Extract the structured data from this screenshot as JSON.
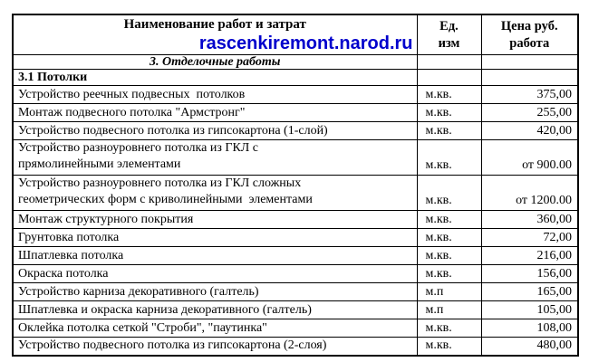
{
  "table": {
    "header": {
      "works_title": "Наименование работ и затрат",
      "site_link": "rascenkiremont.narod.ru",
      "unit_line1": "Ед.",
      "unit_line2": "изм",
      "price_line1": "Цена руб.",
      "price_line2": "работа"
    },
    "section_title": "3. Отделочные работы",
    "subsection_title": "3.1 Потолки",
    "rows": [
      {
        "lines": [
          "Устройство реечных подвесных  потолков"
        ],
        "unit": "м.кв.",
        "price": "375,00"
      },
      {
        "lines": [
          "Монтаж подвесного потолка \"Армстронг\""
        ],
        "unit": "м.кв.",
        "price": "255,00"
      },
      {
        "lines": [
          "Устройство подвесного потолка из гипсокартона (1-слой)"
        ],
        "unit": "м.кв.",
        "price": "420,00"
      },
      {
        "lines": [
          "Устройство разноуровнего потолка из ГКЛ с",
          "прямолинейными элементами"
        ],
        "unit": "м.кв.",
        "price": "от 900.00"
      },
      {
        "lines": [
          "Устройство разноуровнего потолка из ГКЛ сложных",
          "геометрических форм с криволинейными  элементами"
        ],
        "unit": "м.кв.",
        "price": "от 1200.00"
      },
      {
        "lines": [
          "Монтаж структурного покрытия"
        ],
        "unit": "м.кв.",
        "price": "360,00"
      },
      {
        "lines": [
          "Грунтовка потолка"
        ],
        "unit": "м.кв.",
        "price": "72,00"
      },
      {
        "lines": [
          "Шпатлевка потолка"
        ],
        "unit": "м.кв.",
        "price": "216,00"
      },
      {
        "lines": [
          "Окраска потолка"
        ],
        "unit": "м.кв.",
        "price": "156,00"
      },
      {
        "lines": [
          "Устройство карниза декоративного (галтель)"
        ],
        "unit": "м.п",
        "price": "165,00"
      },
      {
        "lines": [
          "Шпатлевка и окраска карниза декоративного (галтель)"
        ],
        "unit": "м.п",
        "price": "105,00"
      },
      {
        "lines": [
          "Оклейка потолка сеткой \"Строби\", \"паутинка\""
        ],
        "unit": "м.кв.",
        "price": "108,00"
      },
      {
        "lines": [
          "Устройство подвесного потолка из гипсокартона (2-слоя)"
        ],
        "unit": "м.кв.",
        "price": "480,00"
      }
    ],
    "colors": {
      "link_blue": "#0000cc",
      "border": "#000000",
      "text": "#000000",
      "background": "#ffffff"
    }
  }
}
